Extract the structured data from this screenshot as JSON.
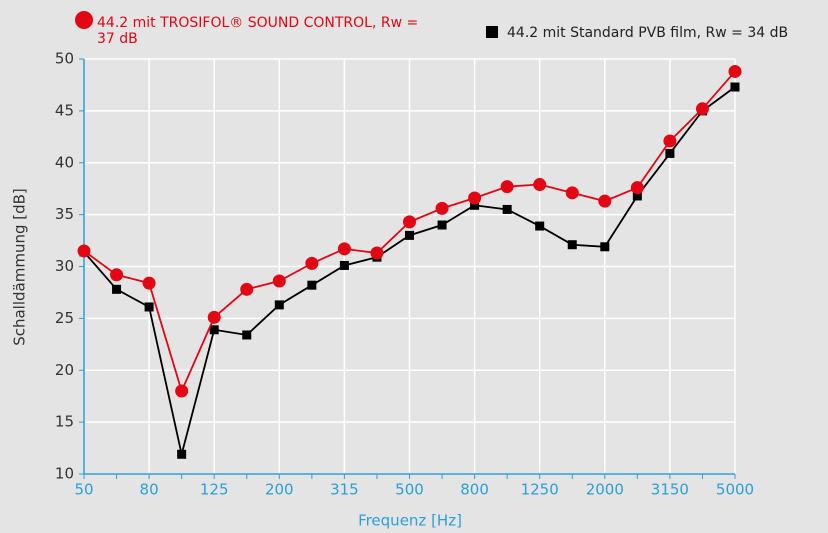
{
  "chart_data": {
    "type": "line",
    "xlabel": "Frequenz [Hz]",
    "ylabel": "Schalldämmung [dB]",
    "categories": [
      "50",
      null,
      "80",
      null,
      "125",
      null,
      "200",
      null,
      "315",
      null,
      "500",
      null,
      "800",
      null,
      "1250",
      null,
      "2000",
      null,
      "3150",
      null,
      "5000"
    ],
    "series": [
      {
        "name": "44.2 mit TROSIFOL® SOUND CONTROL, Rw = 37 dB",
        "color": "#e30613",
        "marker": "circle",
        "values": [
          31.5,
          29.2,
          28.4,
          18.0,
          25.1,
          27.8,
          28.6,
          30.3,
          31.7,
          31.3,
          34.3,
          35.6,
          36.6,
          37.7,
          37.9,
          37.1,
          36.3,
          37.6,
          42.1,
          45.2,
          48.8
        ]
      },
      {
        "name": "44.2 mit Standard PVB film, Rw = 34 dB",
        "color": "#000000",
        "marker": "square",
        "values": [
          31.4,
          27.8,
          26.1,
          11.9,
          23.9,
          23.4,
          26.3,
          28.2,
          30.1,
          30.9,
          33.0,
          34.0,
          35.9,
          35.5,
          33.9,
          32.1,
          31.9,
          36.8,
          40.9,
          45.0,
          47.3
        ]
      }
    ],
    "ylim": [
      10,
      50
    ],
    "yticks": [
      10,
      15,
      20,
      25,
      30,
      35,
      40,
      45,
      50
    ],
    "grid": true
  }
}
